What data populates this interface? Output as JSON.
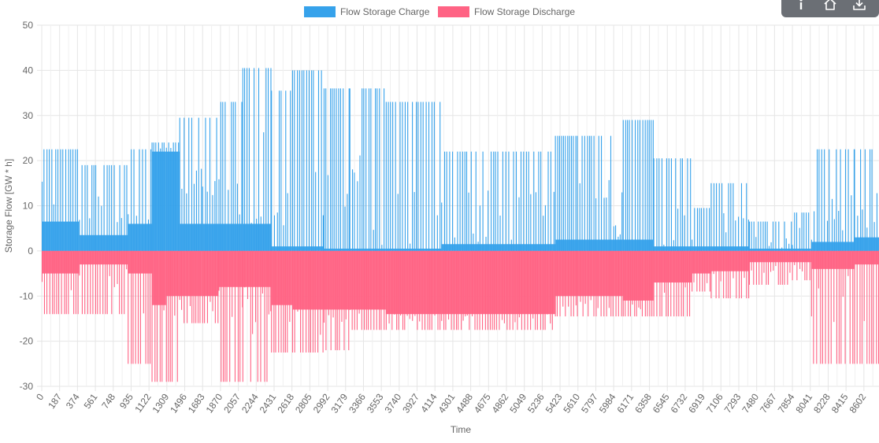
{
  "toolbar": {
    "items": [
      {
        "name": "info-icon"
      },
      {
        "name": "home-icon"
      },
      {
        "name": "download-icon"
      }
    ]
  },
  "colors": {
    "charge": "#36a2eb",
    "discharge": "#ff6384",
    "grid": "#e5e5e5",
    "zero_line": "#c8c8c8",
    "text": "#666666"
  },
  "chart_data": {
    "type": "bar",
    "title": "",
    "xlabel": "Time",
    "ylabel": "Storage Flow [GW * h]",
    "ylim": [
      -30,
      50
    ],
    "y_ticks": [
      50,
      40,
      30,
      20,
      10,
      0,
      -10,
      -20,
      -30
    ],
    "x_range": [
      0,
      8760
    ],
    "x_ticks": [
      "0",
      "187",
      "374",
      "561",
      "748",
      "935",
      "1122",
      "1309",
      "1496",
      "1683",
      "1870",
      "2057",
      "2244",
      "2431",
      "2618",
      "2805",
      "2992",
      "3179",
      "3366",
      "3553",
      "3740",
      "3927",
      "4114",
      "4301",
      "4488",
      "4675",
      "4862",
      "5049",
      "5236",
      "5423",
      "5610",
      "5797",
      "5984",
      "6171",
      "6358",
      "6545",
      "6732",
      "6919",
      "7106",
      "7293",
      "7480",
      "7667",
      "7854",
      "8041",
      "8228",
      "8415",
      "8602"
    ],
    "grid": true,
    "legend_position": "top-center",
    "series": [
      {
        "name": "Flow Storage Charge",
        "color": "#36a2eb",
        "segments": [
          {
            "x": [
              0,
              390
            ],
            "peak": 22.5,
            "base": 6.5
          },
          {
            "x": [
              390,
              900
            ],
            "peak": 19.0,
            "base": 3.5
          },
          {
            "x": [
              900,
              1150
            ],
            "peak": 22.5,
            "base": 6.0
          },
          {
            "x": [
              1150,
              1300
            ],
            "peak": 24.0,
            "base": 22.0
          },
          {
            "x": [
              1300,
              1440
            ],
            "peak": 24.0,
            "base": 22.0
          },
          {
            "x": [
              1440,
              1680
            ],
            "peak": 29.5,
            "base": 6.0
          },
          {
            "x": [
              1680,
              1850
            ],
            "peak": 29.5,
            "base": 6.0
          },
          {
            "x": [
              1850,
              2100
            ],
            "peak": 33.0,
            "base": 6.0
          },
          {
            "x": [
              2100,
              2400
            ],
            "peak": 40.5,
            "base": 6.0
          },
          {
            "x": [
              2400,
              2620
            ],
            "peak": 35.5,
            "base": 1.0
          },
          {
            "x": [
              2620,
              2950
            ],
            "peak": 40.0,
            "base": 1.0
          },
          {
            "x": [
              2950,
              3220
            ],
            "peak": 36.0,
            "base": 0.5
          },
          {
            "x": [
              3220,
              3600
            ],
            "peak": 36.0,
            "base": 0.5
          },
          {
            "x": [
              3600,
              4180
            ],
            "peak": 33.0,
            "base": 0.5
          },
          {
            "x": [
              4180,
              5370
            ],
            "peak": 22.0,
            "base": 1.5
          },
          {
            "x": [
              5370,
              5600
            ],
            "peak": 25.5,
            "base": 2.5
          },
          {
            "x": [
              5600,
              6080
            ],
            "peak": 25.5,
            "base": 2.5
          },
          {
            "x": [
              6080,
              6400
            ],
            "peak": 29.0,
            "base": 2.5
          },
          {
            "x": [
              6400,
              6800
            ],
            "peak": 20.5,
            "base": 1.0
          },
          {
            "x": [
              6800,
              7000
            ],
            "peak": 9.5,
            "base": 1.0
          },
          {
            "x": [
              7000,
              7400
            ],
            "peak": 15.0,
            "base": 1.0
          },
          {
            "x": [
              7400,
              7850
            ],
            "peak": 6.5,
            "base": 0.5
          },
          {
            "x": [
              7850,
              8050
            ],
            "peak": 8.5,
            "base": 0.5
          },
          {
            "x": [
              8050,
              8500
            ],
            "peak": 22.5,
            "base": 2.0
          },
          {
            "x": [
              8500,
              8760
            ],
            "peak": 22.5,
            "base": 3.0
          }
        ]
      },
      {
        "name": "Flow Storage Discharge",
        "color": "#ff6384",
        "segments": [
          {
            "x": [
              0,
              390
            ],
            "peak": -14.0,
            "base": -5.0
          },
          {
            "x": [
              390,
              900
            ],
            "peak": -14.0,
            "base": -3.0
          },
          {
            "x": [
              900,
              1150
            ],
            "peak": -25.0,
            "base": -5.0
          },
          {
            "x": [
              1150,
              1300
            ],
            "peak": -29.0,
            "base": -12.0
          },
          {
            "x": [
              1300,
              1440
            ],
            "peak": -29.0,
            "base": -10.0
          },
          {
            "x": [
              1440,
              1680
            ],
            "peak": -16.0,
            "base": -10.0
          },
          {
            "x": [
              1680,
              1850
            ],
            "peak": -16.0,
            "base": -10.0
          },
          {
            "x": [
              1850,
              2100
            ],
            "peak": -29.0,
            "base": -8.0
          },
          {
            "x": [
              2100,
              2400
            ],
            "peak": -29.0,
            "base": -8.0
          },
          {
            "x": [
              2400,
              2620
            ],
            "peak": -22.5,
            "base": -12.0
          },
          {
            "x": [
              2620,
              2950
            ],
            "peak": -22.5,
            "base": -13.0
          },
          {
            "x": [
              2950,
              3220
            ],
            "peak": -22.0,
            "base": -13.0
          },
          {
            "x": [
              3220,
              3600
            ],
            "peak": -17.5,
            "base": -13.0
          },
          {
            "x": [
              3600,
              4180
            ],
            "peak": -17.5,
            "base": -14.0
          },
          {
            "x": [
              4180,
              5370
            ],
            "peak": -17.5,
            "base": -14.0
          },
          {
            "x": [
              5370,
              5600
            ],
            "peak": -14.5,
            "base": -10.0
          },
          {
            "x": [
              5600,
              6080
            ],
            "peak": -14.5,
            "base": -10.0
          },
          {
            "x": [
              6080,
              6400
            ],
            "peak": -14.5,
            "base": -11.0
          },
          {
            "x": [
              6400,
              6800
            ],
            "peak": -14.5,
            "base": -7.0
          },
          {
            "x": [
              6800,
              7000
            ],
            "peak": -9.0,
            "base": -5.0
          },
          {
            "x": [
              7000,
              7400
            ],
            "peak": -10.5,
            "base": -4.5
          },
          {
            "x": [
              7400,
              7850
            ],
            "peak": -7.5,
            "base": -2.5
          },
          {
            "x": [
              7850,
              8050
            ],
            "peak": -6.5,
            "base": -2.5
          },
          {
            "x": [
              8050,
              8500
            ],
            "peak": -25.0,
            "base": -4.0
          },
          {
            "x": [
              8500,
              8760
            ],
            "peak": -25.0,
            "base": -3.0
          }
        ]
      }
    ]
  }
}
